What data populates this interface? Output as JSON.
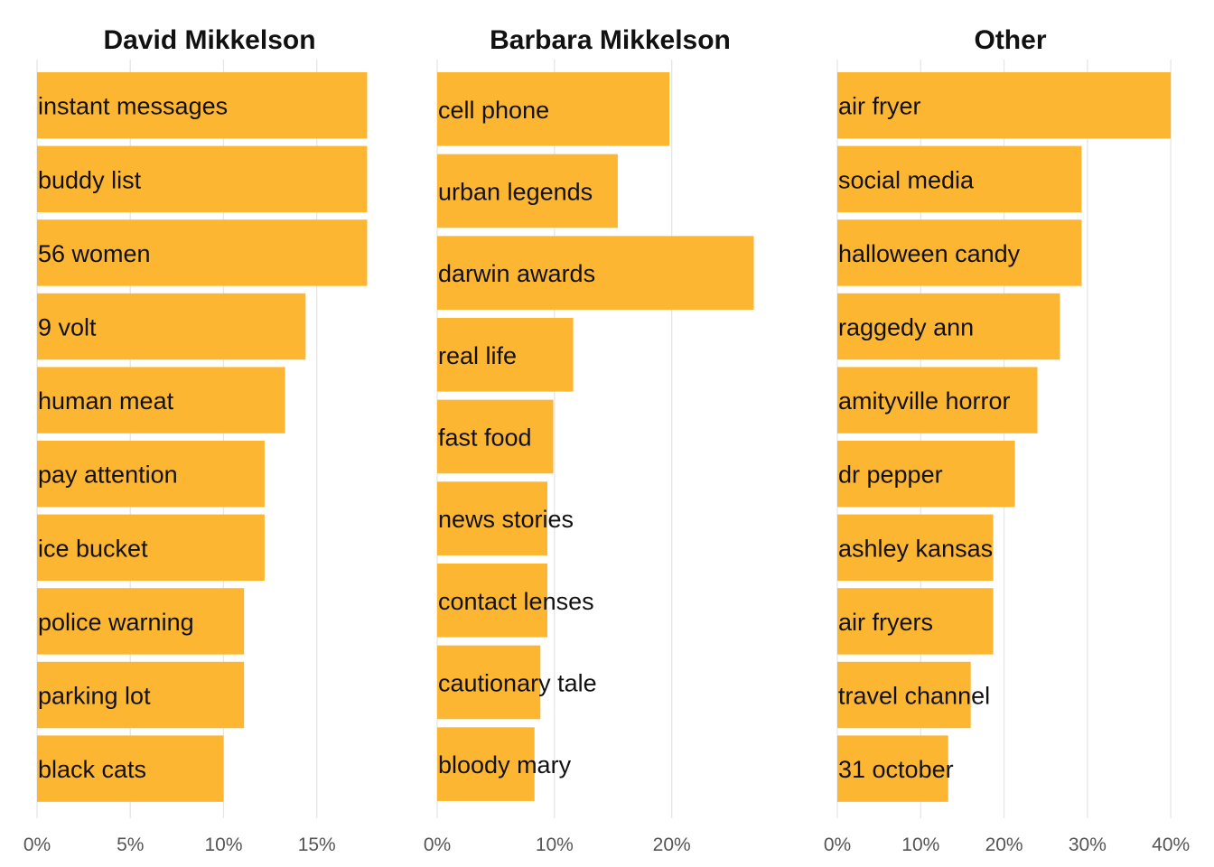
{
  "chart_data": [
    {
      "type": "bar",
      "orientation": "horizontal",
      "title": "David Mikkelson",
      "categories": [
        "instant messages",
        "buddy list",
        "56 women",
        "9 volt",
        "human meat",
        "pay attention",
        "ice bucket",
        "police warning",
        "parking lot",
        "black cats"
      ],
      "values": [
        17.7,
        17.7,
        17.7,
        14.4,
        13.3,
        12.2,
        12.2,
        11.1,
        11.1,
        10.0
      ],
      "xlim": [
        0,
        18.5
      ],
      "xticks": [
        "0%",
        "5%",
        "10%",
        "15%"
      ],
      "xtick_values": [
        0,
        5,
        10,
        15
      ],
      "grid": true,
      "color": "#FDB632"
    },
    {
      "type": "bar",
      "orientation": "horizontal",
      "title": "Barbara Mikkelson",
      "categories": [
        "cell phone",
        "urban legends",
        "darwin awards",
        "real life",
        "fast food",
        "news stories",
        "contact lenses",
        "cautionary tale",
        "bloody mary"
      ],
      "values": [
        19.8,
        15.4,
        27.0,
        11.6,
        9.9,
        9.4,
        9.4,
        8.8,
        8.3
      ],
      "xlim": [
        0,
        29.5
      ],
      "xticks": [
        "0%",
        "10%",
        "20%"
      ],
      "xtick_values": [
        0,
        10,
        20
      ],
      "grid": true,
      "color": "#FDB632"
    },
    {
      "type": "bar",
      "orientation": "horizontal",
      "title": "Other",
      "categories": [
        "air fryer",
        "social media",
        "halloween candy",
        "raggedy ann",
        "amityville horror",
        "dr pepper",
        "ashley kansas",
        "air fryers",
        "travel channel",
        "31 october"
      ],
      "values": [
        40.0,
        29.3,
        29.3,
        26.7,
        24.0,
        21.3,
        18.7,
        18.7,
        16.0,
        13.3
      ],
      "xlim": [
        0,
        41.5
      ],
      "xticks": [
        "0%",
        "10%",
        "20%",
        "30%",
        "40%"
      ],
      "xtick_values": [
        0,
        10,
        20,
        30,
        40
      ],
      "grid": true,
      "color": "#FDB632"
    }
  ]
}
